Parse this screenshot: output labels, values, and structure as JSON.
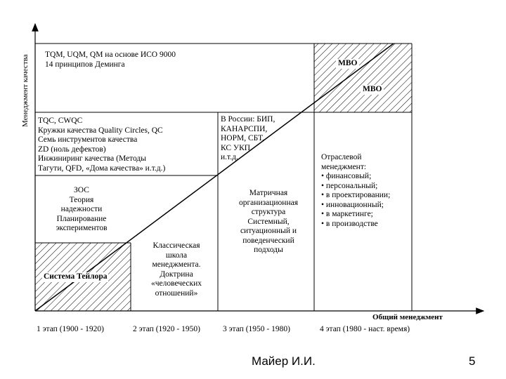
{
  "axes": {
    "y_label": "Менеджмент качества",
    "x_label": "Общий менеджмент"
  },
  "stages": [
    "1 этап (1900 - 1920)",
    "2 этап (1920 - 1950)",
    "3 этап (1950 - 1980)",
    "4 этап (1980 - наст. время)"
  ],
  "cells": {
    "tqm": [
      "TQM, UQM, QM на основе ИСО 9000",
      "14 принципов Деминга"
    ],
    "mbo1": "MBO",
    "mbo2": "MBO",
    "tqc": [
      "TQC, CWQC",
      "Кружки качества Quality Circles, QC",
      "Семь инструментов качества",
      "ZD (ноль дефектов)",
      "Инжиниринг качества (Методы",
      "Тагути, QFD, «Дома качества» и.т.д.)"
    ],
    "russia": [
      "В России: БИП,",
      "КАНАРСПИ,",
      "НОРМ, СБТ,",
      "КС УКП",
      "и.т.д."
    ],
    "branch_title": [
      "Отраслевой",
      "менеджмент:"
    ],
    "branch_items": [
      "финансовый;",
      "персональный;",
      "в проектировании;",
      "инновационный;",
      "в  маркетинге;",
      "в производстве"
    ],
    "zos": [
      "ЗОС",
      "Теория",
      "надежности",
      "Планирование",
      "экспериментов"
    ],
    "matrix": [
      "Матричная",
      "организационная",
      "структура",
      "Системный,",
      "ситуационный и",
      "поведенческий",
      "подходы"
    ],
    "classic": [
      "Классическая",
      "школа",
      "менеджмента.",
      "Доктрина",
      "«человеческих",
      "отношений»"
    ],
    "taylor": "Система Тейлора"
  },
  "footer": {
    "author": "Майер И.И.",
    "page": "5"
  }
}
